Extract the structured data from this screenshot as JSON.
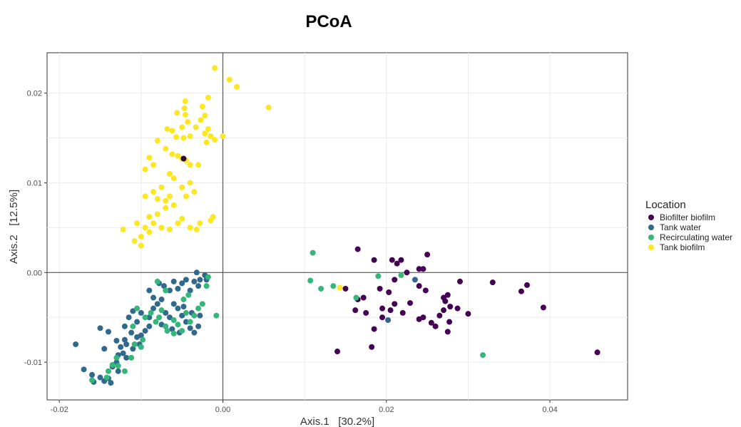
{
  "chart_data": {
    "type": "scatter",
    "title": "PCoA",
    "xlabel": "Axis.1   [30.2%]",
    "ylabel": "Axis.2   [12.5%]",
    "xlim": [
      -0.0215,
      0.0495
    ],
    "ylim": [
      -0.0142,
      0.0245
    ],
    "xticks": [
      -0.02,
      0.0,
      0.02,
      0.04
    ],
    "xtick_labels": [
      "-0.02",
      "0.00",
      "0.02",
      "0.04"
    ],
    "yticks": [
      -0.01,
      0.0,
      0.01,
      0.02
    ],
    "ytick_labels": [
      "-0.01",
      "0.00",
      "0.01",
      "0.02"
    ],
    "grid": true,
    "zero_lines": true,
    "legend": {
      "title": "Location",
      "position": "right"
    },
    "series": [
      {
        "name": "Biofilter biofilm",
        "color": "#440154",
        "points": [
          [
            0.0165,
            0.0026
          ],
          [
            0.0185,
            0.0014
          ],
          [
            0.0207,
            0.0014
          ],
          [
            0.0218,
            0.0014
          ],
          [
            0.0213,
            0.001
          ],
          [
            0.025,
            0.002
          ],
          [
            0.024,
            0.0004
          ],
          [
            0.0245,
            0.0004
          ],
          [
            0.0225,
            0.0
          ],
          [
            0.015,
            -0.0018
          ],
          [
            0.0165,
            -0.003
          ],
          [
            0.0172,
            -0.0028
          ],
          [
            0.0192,
            -0.0018
          ],
          [
            0.0203,
            -0.0022
          ],
          [
            0.024,
            -0.0015
          ],
          [
            0.0248,
            -0.002
          ],
          [
            0.027,
            -0.0028
          ],
          [
            0.0275,
            -0.0025
          ],
          [
            0.0272,
            -0.0032
          ],
          [
            0.029,
            -0.001
          ],
          [
            0.033,
            -0.0011
          ],
          [
            0.0365,
            -0.0021
          ],
          [
            0.0372,
            -0.0014
          ],
          [
            0.0392,
            -0.0039
          ],
          [
            0.0162,
            -0.0042
          ],
          [
            0.0175,
            -0.0045
          ],
          [
            0.0195,
            -0.004
          ],
          [
            0.021,
            -0.0035
          ],
          [
            0.0205,
            -0.0042
          ],
          [
            0.022,
            -0.0045
          ],
          [
            0.0245,
            -0.005
          ],
          [
            0.026,
            -0.006
          ],
          [
            0.027,
            -0.0042
          ],
          [
            0.0278,
            -0.0038
          ],
          [
            0.0287,
            -0.004
          ],
          [
            0.03,
            -0.0046
          ],
          [
            0.0265,
            -0.0048
          ],
          [
            0.0277,
            -0.0055
          ],
          [
            0.0255,
            -0.0056
          ],
          [
            0.024,
            -0.0052
          ],
          [
            0.0195,
            -0.005
          ],
          [
            0.0185,
            -0.0063
          ],
          [
            0.0275,
            -0.0066
          ],
          [
            0.0182,
            -0.0083
          ],
          [
            0.014,
            -0.0088
          ],
          [
            0.0458,
            -0.0089
          ],
          [
            0.021,
            -0.0008
          ],
          [
            0.0229,
            -0.0034
          ]
        ]
      },
      {
        "name": "Tank water",
        "color": "#31688e",
        "points": [
          [
            -0.018,
            -0.008
          ],
          [
            -0.017,
            -0.0108
          ],
          [
            -0.016,
            -0.0114
          ],
          [
            -0.0158,
            -0.0122
          ],
          [
            -0.015,
            -0.0117
          ],
          [
            -0.0145,
            -0.0121
          ],
          [
            -0.014,
            -0.0118
          ],
          [
            -0.0137,
            -0.0123
          ],
          [
            -0.0135,
            -0.0105
          ],
          [
            -0.0128,
            -0.0092
          ],
          [
            -0.013,
            -0.01
          ],
          [
            -0.0122,
            -0.009
          ],
          [
            -0.0125,
            -0.0083
          ],
          [
            -0.0118,
            -0.008
          ],
          [
            -0.011,
            -0.0085
          ],
          [
            -0.0105,
            -0.0072
          ],
          [
            -0.0112,
            -0.0067
          ],
          [
            -0.012,
            -0.0075
          ],
          [
            -0.013,
            -0.0076
          ],
          [
            -0.014,
            -0.0066
          ],
          [
            -0.0145,
            -0.0085
          ],
          [
            -0.01,
            -0.007
          ],
          [
            -0.0095,
            -0.0065
          ],
          [
            -0.009,
            -0.006
          ],
          [
            -0.0105,
            -0.0055
          ],
          [
            -0.0115,
            -0.005
          ],
          [
            -0.011,
            -0.0043
          ],
          [
            -0.01,
            -0.0045
          ],
          [
            -0.009,
            -0.005
          ],
          [
            -0.0085,
            -0.004
          ],
          [
            -0.008,
            -0.0035
          ],
          [
            -0.0075,
            -0.003
          ],
          [
            -0.0085,
            -0.0028
          ],
          [
            -0.009,
            -0.002
          ],
          [
            -0.0078,
            -0.0012
          ],
          [
            -0.0072,
            -0.0015
          ],
          [
            -0.0065,
            -0.002
          ],
          [
            -0.006,
            -0.001
          ],
          [
            -0.0055,
            -0.0018
          ],
          [
            -0.005,
            -0.0012
          ],
          [
            -0.0045,
            -0.0008
          ],
          [
            -0.0035,
            -0.001
          ],
          [
            -0.004,
            -0.002
          ],
          [
            -0.003,
            -0.0015
          ],
          [
            -0.0028,
            -0.0008
          ],
          [
            -0.0022,
            -0.0003
          ],
          [
            -0.0032,
            0.0
          ],
          [
            -0.002,
            -0.0008
          ],
          [
            -0.006,
            -0.0035
          ],
          [
            -0.0055,
            -0.004
          ],
          [
            -0.005,
            -0.0048
          ],
          [
            -0.0045,
            -0.0055
          ],
          [
            -0.004,
            -0.0062
          ],
          [
            -0.0035,
            -0.0067
          ],
          [
            -0.003,
            -0.006
          ],
          [
            -0.0028,
            -0.0048
          ],
          [
            -0.0038,
            -0.0045
          ],
          [
            -0.0048,
            -0.0038
          ],
          [
            -0.0065,
            -0.005
          ],
          [
            -0.007,
            -0.0045
          ],
          [
            -0.0075,
            -0.0058
          ],
          [
            -0.0062,
            -0.0063
          ],
          [
            -0.0053,
            -0.0067
          ],
          [
            -0.012,
            -0.006
          ],
          [
            -0.0128,
            -0.011
          ],
          [
            -0.015,
            -0.0062
          ],
          [
            0.0235,
            -0.0008
          ],
          [
            0.0202,
            -0.0053
          ],
          [
            -0.0118,
            -0.0095
          ],
          [
            -0.0102,
            -0.008
          ]
        ]
      },
      {
        "name": "Recirculating water",
        "color": "#35b779",
        "points": [
          [
            -0.016,
            -0.012
          ],
          [
            -0.0142,
            -0.0117
          ],
          [
            -0.0135,
            -0.0103
          ],
          [
            -0.0128,
            -0.0104
          ],
          [
            -0.012,
            -0.011
          ],
          [
            -0.0112,
            -0.0095
          ],
          [
            -0.0108,
            -0.008
          ],
          [
            -0.01,
            -0.0083
          ],
          [
            -0.0098,
            -0.0075
          ],
          [
            -0.011,
            -0.006
          ],
          [
            -0.0105,
            -0.004
          ],
          [
            -0.0095,
            -0.005
          ],
          [
            -0.0088,
            -0.0045
          ],
          [
            -0.0082,
            -0.0055
          ],
          [
            -0.0078,
            -0.005
          ],
          [
            -0.007,
            -0.006
          ],
          [
            -0.0068,
            -0.0065
          ],
          [
            -0.006,
            -0.0053
          ],
          [
            -0.0055,
            -0.0058
          ],
          [
            -0.005,
            -0.0065
          ],
          [
            -0.0045,
            -0.0045
          ],
          [
            -0.004,
            -0.0055
          ],
          [
            -0.0035,
            -0.0048
          ],
          [
            -0.003,
            -0.004
          ],
          [
            -0.0025,
            -0.0035
          ],
          [
            -0.002,
            -0.0015
          ],
          [
            -0.0018,
            -0.0005
          ],
          [
            -0.0008,
            -0.0048
          ],
          [
            -0.0042,
            -0.0025
          ],
          [
            -0.0048,
            -0.003
          ],
          [
            -0.007,
            -0.002
          ],
          [
            -0.008,
            -0.001
          ],
          [
            -0.006,
            -0.0068
          ],
          [
            -0.0075,
            -0.0042
          ],
          [
            -0.013,
            -0.0095
          ],
          [
            -0.014,
            -0.011
          ],
          [
            0.011,
            0.0022
          ],
          [
            0.0107,
            -0.0009
          ],
          [
            0.012,
            -0.0018
          ],
          [
            0.0135,
            -0.0015
          ],
          [
            0.0163,
            -0.0028
          ],
          [
            0.019,
            -0.0004
          ],
          [
            0.0218,
            -0.0003
          ],
          [
            0.0318,
            -0.0092
          ]
        ]
      },
      {
        "name": "Tank biofilm",
        "color": "#fde725",
        "points": [
          [
            -0.001,
            0.0228
          ],
          [
            0.0008,
            0.0215
          ],
          [
            0.0017,
            0.0207
          ],
          [
            0.0056,
            0.0184
          ],
          [
            -0.0046,
            0.0191
          ],
          [
            -0.0047,
            0.0183
          ],
          [
            -0.0056,
            0.0178
          ],
          [
            -0.0046,
            0.0176
          ],
          [
            -0.0043,
            0.0168
          ],
          [
            -0.005,
            0.0162
          ],
          [
            -0.0062,
            0.0158
          ],
          [
            -0.0068,
            0.016
          ],
          [
            -0.0057,
            0.0151
          ],
          [
            -0.0048,
            0.015
          ],
          [
            -0.004,
            0.0152
          ],
          [
            -0.0033,
            0.0162
          ],
          [
            -0.0027,
            0.017
          ],
          [
            -0.0022,
            0.0175
          ],
          [
            -0.0018,
            0.0195
          ],
          [
            -0.0025,
            0.0185
          ],
          [
            -0.0018,
            0.016
          ],
          [
            -0.0022,
            0.0155
          ],
          [
            -0.0015,
            0.0152
          ],
          [
            -0.001,
            0.0148
          ],
          [
            0.0,
            0.0152
          ],
          [
            -0.002,
            0.0145
          ],
          [
            -0.008,
            0.0147
          ],
          [
            -0.007,
            0.0138
          ],
          [
            -0.0062,
            0.0132
          ],
          [
            -0.0055,
            0.013
          ],
          [
            -0.005,
            0.0127
          ],
          [
            -0.0045,
            0.0125
          ],
          [
            -0.004,
            0.012
          ],
          [
            -0.003,
            0.012
          ],
          [
            -0.009,
            0.0128
          ],
          [
            -0.0085,
            0.012
          ],
          [
            -0.0095,
            0.0115
          ],
          [
            -0.0065,
            0.011
          ],
          [
            -0.006,
            0.0105
          ],
          [
            -0.0075,
            0.0095
          ],
          [
            -0.0085,
            0.009
          ],
          [
            -0.0095,
            0.0085
          ],
          [
            -0.008,
            0.0082
          ],
          [
            -0.007,
            0.008
          ],
          [
            -0.0065,
            0.0085
          ],
          [
            -0.005,
            0.0095
          ],
          [
            -0.004,
            0.01
          ],
          [
            -0.0035,
            0.009
          ],
          [
            -0.0045,
            0.0085
          ],
          [
            -0.006,
            0.0075
          ],
          [
            -0.007,
            0.0072
          ],
          [
            -0.008,
            0.0065
          ],
          [
            -0.009,
            0.0062
          ],
          [
            -0.0085,
            0.0055
          ],
          [
            -0.0075,
            0.005
          ],
          [
            -0.0065,
            0.0048
          ],
          [
            -0.0055,
            0.0055
          ],
          [
            -0.005,
            0.006
          ],
          [
            -0.004,
            0.005
          ],
          [
            -0.0032,
            0.0048
          ],
          [
            -0.0028,
            0.0055
          ],
          [
            -0.0015,
            0.0058
          ],
          [
            -0.0012,
            0.0062
          ],
          [
            -0.0095,
            0.005
          ],
          [
            -0.01,
            0.004
          ],
          [
            -0.0108,
            0.0035
          ],
          [
            -0.0122,
            0.0048
          ],
          [
            -0.0105,
            0.0055
          ],
          [
            -0.01,
            0.003
          ],
          [
            -0.009,
            0.0045
          ],
          [
            0.0143,
            -0.0017
          ]
        ]
      }
    ],
    "highlight_point": {
      "x": -0.0048,
      "y": 0.0127,
      "color": "#2a0a2e"
    }
  }
}
